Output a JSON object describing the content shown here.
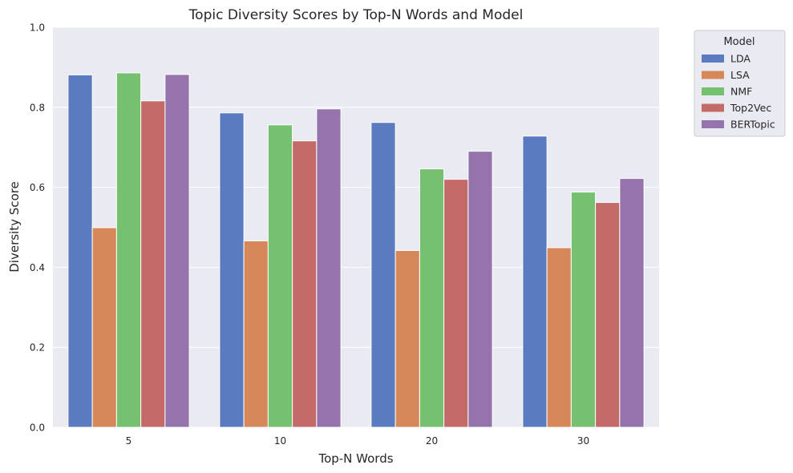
{
  "chart_data": {
    "type": "bar",
    "title": "Topic Diversity Scores by Top-N Words and Model",
    "xlabel": "Top-N Words",
    "ylabel": "Diversity Score",
    "ylim": [
      0,
      1.0
    ],
    "yticks": [
      "0.0",
      "0.2",
      "0.4",
      "0.6",
      "0.8",
      "1.0"
    ],
    "categories": [
      "5",
      "10",
      "20",
      "30"
    ],
    "grid": true,
    "legend": {
      "title": "Model",
      "placement": "outside-top-right"
    },
    "series": [
      {
        "name": "LDA",
        "color": "#5a7bbf",
        "values": [
          0.881,
          0.786,
          0.762,
          0.728
        ]
      },
      {
        "name": "LSA",
        "color": "#d6885a",
        "values": [
          0.499,
          0.466,
          0.442,
          0.449
        ]
      },
      {
        "name": "NMF",
        "color": "#76c16f",
        "values": [
          0.886,
          0.756,
          0.646,
          0.588
        ]
      },
      {
        "name": "Top2Vec",
        "color": "#c46b69",
        "values": [
          0.816,
          0.716,
          0.62,
          0.562
        ]
      },
      {
        "name": "BERTopic",
        "color": "#9474ab",
        "values": [
          0.882,
          0.796,
          0.69,
          0.622
        ]
      }
    ]
  }
}
